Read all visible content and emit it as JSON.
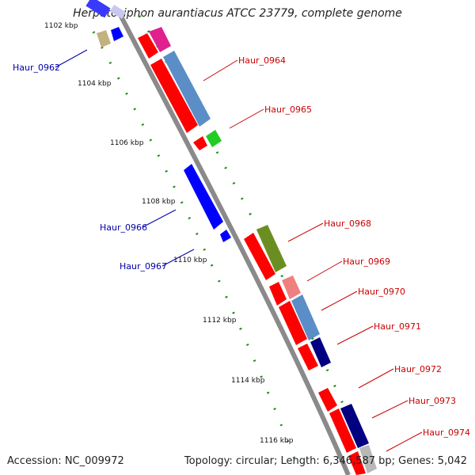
{
  "title": "Herpetosiphon aurantiacus ATCC 23779, complete genome",
  "footer": {
    "accession": "Accession: NC_009972",
    "topology": "Topology: circular; Length: 6,346,587 bp; Genes: 5,042"
  },
  "kbp_ticks": [
    "1102 kbp",
    "1104 kbp",
    "1106 kbp",
    "1108 kbp",
    "1110 kbp",
    "1112 kbp",
    "1114 kbp",
    "1116 kbp"
  ],
  "gene_labels_forward": [
    "Haur_0964",
    "Haur_0965",
    "Haur_0968",
    "Haur_0969",
    "Haur_0970",
    "Haur_0971",
    "Haur_0972",
    "Haur_0973",
    "Haur_0974"
  ],
  "gene_labels_reverse": [
    "Haur_0962",
    "Haur_0966",
    "Haur_0967"
  ],
  "colors": {
    "backbone": "#8a8a8a",
    "forward_label": "#cc0000",
    "reverse_label": "#0000aa",
    "tick_green": "#1e8a1e",
    "red": "#ff0000",
    "blue": "#0000ff",
    "navy": "#000080",
    "steel_blue": "#5b8ec6",
    "olive": "#6b8e23",
    "khaki": "#c2b280",
    "magenta": "#e0208f",
    "green": "#22cc22",
    "pink": "#f08080",
    "grey": "#b8b8b8"
  }
}
